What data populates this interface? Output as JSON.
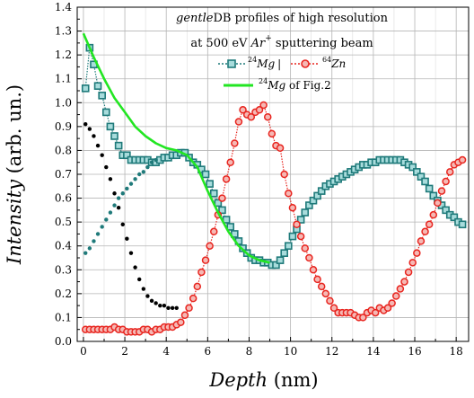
{
  "chart_data": {
    "type": "line",
    "title_lines": [
      {
        "italic": "gentle",
        "rest": "DB profiles of high resolution"
      },
      {
        "prefix": "at 500 eV ",
        "ion_italic": "Ar",
        "ion_sup": "+",
        "suffix": " sputtering beam"
      }
    ],
    "xlabel_italic": "Depth",
    "xlabel_unit": " (nm)",
    "ylabel_italic": "Intensity",
    "ylabel_unit": " (arb. un.)",
    "xlim": [
      -0.3,
      18.6
    ],
    "ylim": [
      0,
      1.4
    ],
    "xticks": [
      "0",
      "2",
      "4",
      "6",
      "8",
      "10",
      "12",
      "14",
      "16",
      "18"
    ],
    "xtick_values": [
      0,
      2,
      4,
      6,
      8,
      10,
      12,
      14,
      16,
      18
    ],
    "yticks": [
      "0.0",
      "0.1",
      "0.2",
      "0.3",
      "0.4",
      "0.5",
      "0.6",
      "0.7",
      "0.8",
      "0.9",
      "1.0",
      "1.1",
      "1.2",
      "1.3",
      "1.4"
    ],
    "ytick_values": [
      0,
      0.1,
      0.2,
      0.3,
      0.4,
      0.5,
      0.6,
      0.7,
      0.8,
      0.9,
      1.0,
      1.1,
      1.2,
      1.3,
      1.4
    ],
    "grid": true,
    "legend": {
      "position": "top-right",
      "mg_sup": "24",
      "mg_label": "Mg",
      "separator": "|",
      "zn_sup": "64",
      "zn_label": "Zn",
      "fig2_sup": "24",
      "fig2_label": "Mg",
      "fig2_suffix": " of Fig.2"
    },
    "series": [
      {
        "key": "mg",
        "color": "#1f7a7a",
        "marker": "square",
        "x": [
          0.1,
          0.3,
          0.5,
          0.7,
          0.9,
          1.1,
          1.3,
          1.5,
          1.7,
          1.9,
          2.1,
          2.3,
          2.5,
          2.7,
          2.9,
          3.1,
          3.3,
          3.5,
          3.7,
          3.9,
          4.1,
          4.3,
          4.5,
          4.7,
          4.9,
          5.1,
          5.3,
          5.5,
          5.7,
          5.9,
          6.1,
          6.3,
          6.5,
          6.7,
          6.9,
          7.1,
          7.3,
          7.5,
          7.7,
          7.9,
          8.1,
          8.3,
          8.5,
          8.7,
          8.9,
          9.1,
          9.3,
          9.5,
          9.7,
          9.9,
          10.1,
          10.3,
          10.5,
          10.7,
          10.9,
          11.1,
          11.3,
          11.5,
          11.7,
          11.9,
          12.1,
          12.3,
          12.5,
          12.7,
          12.9,
          13.1,
          13.3,
          13.5,
          13.7,
          13.9,
          14.1,
          14.3,
          14.5,
          14.7,
          14.9,
          15.1,
          15.3,
          15.5,
          15.7,
          15.9,
          16.1,
          16.3,
          16.5,
          16.7,
          16.9,
          17.1,
          17.3,
          17.5,
          17.7,
          17.9,
          18.1,
          18.3
        ],
        "y": [
          1.06,
          1.23,
          1.16,
          1.07,
          1.03,
          0.96,
          0.9,
          0.86,
          0.82,
          0.78,
          0.78,
          0.76,
          0.76,
          0.76,
          0.76,
          0.76,
          0.75,
          0.75,
          0.76,
          0.77,
          0.77,
          0.78,
          0.78,
          0.79,
          0.79,
          0.77,
          0.75,
          0.74,
          0.72,
          0.7,
          0.66,
          0.62,
          0.58,
          0.55,
          0.51,
          0.48,
          0.45,
          0.42,
          0.39,
          0.37,
          0.35,
          0.34,
          0.34,
          0.33,
          0.33,
          0.32,
          0.32,
          0.34,
          0.37,
          0.4,
          0.44,
          0.47,
          0.51,
          0.54,
          0.57,
          0.59,
          0.61,
          0.63,
          0.65,
          0.66,
          0.67,
          0.68,
          0.69,
          0.7,
          0.71,
          0.72,
          0.73,
          0.74,
          0.74,
          0.75,
          0.75,
          0.76,
          0.76,
          0.76,
          0.76,
          0.76,
          0.76,
          0.75,
          0.74,
          0.73,
          0.71,
          0.69,
          0.67,
          0.64,
          0.61,
          0.59,
          0.57,
          0.55,
          0.53,
          0.52,
          0.5,
          0.49
        ]
      },
      {
        "key": "zn",
        "color": "#e8251f",
        "marker": "circle",
        "x": [
          0.1,
          0.3,
          0.5,
          0.7,
          0.9,
          1.1,
          1.3,
          1.5,
          1.7,
          1.9,
          2.1,
          2.3,
          2.5,
          2.7,
          2.9,
          3.1,
          3.3,
          3.5,
          3.7,
          3.9,
          4.1,
          4.3,
          4.5,
          4.7,
          4.9,
          5.1,
          5.3,
          5.5,
          5.7,
          5.9,
          6.1,
          6.3,
          6.5,
          6.7,
          6.9,
          7.1,
          7.3,
          7.5,
          7.7,
          7.9,
          8.1,
          8.3,
          8.5,
          8.7,
          8.9,
          9.1,
          9.3,
          9.5,
          9.7,
          9.9,
          10.1,
          10.3,
          10.5,
          10.7,
          10.9,
          11.1,
          11.3,
          11.5,
          11.7,
          11.9,
          12.1,
          12.3,
          12.5,
          12.7,
          12.9,
          13.1,
          13.3,
          13.5,
          13.7,
          13.9,
          14.1,
          14.3,
          14.5,
          14.7,
          14.9,
          15.1,
          15.3,
          15.5,
          15.7,
          15.9,
          16.1,
          16.3,
          16.5,
          16.7,
          16.9,
          17.1,
          17.3,
          17.5,
          17.7,
          17.9,
          18.1,
          18.3
        ],
        "y": [
          0.05,
          0.05,
          0.05,
          0.05,
          0.05,
          0.05,
          0.05,
          0.06,
          0.05,
          0.05,
          0.04,
          0.04,
          0.04,
          0.04,
          0.05,
          0.05,
          0.04,
          0.05,
          0.05,
          0.06,
          0.06,
          0.06,
          0.07,
          0.08,
          0.11,
          0.14,
          0.18,
          0.23,
          0.29,
          0.34,
          0.4,
          0.46,
          0.53,
          0.6,
          0.68,
          0.75,
          0.83,
          0.92,
          0.97,
          0.95,
          0.94,
          0.96,
          0.97,
          0.99,
          0.94,
          0.87,
          0.82,
          0.81,
          0.7,
          0.62,
          0.56,
          0.49,
          0.44,
          0.39,
          0.35,
          0.3,
          0.26,
          0.23,
          0.2,
          0.17,
          0.14,
          0.12,
          0.12,
          0.12,
          0.12,
          0.11,
          0.1,
          0.1,
          0.12,
          0.13,
          0.12,
          0.14,
          0.13,
          0.14,
          0.16,
          0.19,
          0.22,
          0.25,
          0.29,
          0.33,
          0.37,
          0.42,
          0.46,
          0.49,
          0.53,
          0.58,
          0.63,
          0.67,
          0.71,
          0.74,
          0.75,
          0.76
        ]
      },
      {
        "key": "black",
        "color": "#000000",
        "marker": "dot",
        "x": [
          0.1,
          0.3,
          0.5,
          0.7,
          0.9,
          1.1,
          1.3,
          1.5,
          1.7,
          1.9,
          2.1,
          2.3,
          2.5,
          2.7,
          2.9,
          3.1,
          3.3,
          3.5,
          3.7,
          3.9,
          4.1,
          4.3,
          4.5
        ],
        "y": [
          0.91,
          0.89,
          0.86,
          0.82,
          0.78,
          0.73,
          0.68,
          0.62,
          0.56,
          0.49,
          0.43,
          0.37,
          0.31,
          0.26,
          0.22,
          0.19,
          0.17,
          0.16,
          0.15,
          0.15,
          0.14,
          0.14,
          0.14
        ]
      },
      {
        "key": "tealdot",
        "color": "#1f7a7a",
        "marker": "dot",
        "x": [
          0.1,
          0.3,
          0.5,
          0.7,
          0.9,
          1.1,
          1.3,
          1.5,
          1.7,
          1.9,
          2.1,
          2.3,
          2.5,
          2.7,
          2.9,
          3.1,
          3.3,
          3.5
        ],
        "y": [
          0.37,
          0.39,
          0.42,
          0.45,
          0.48,
          0.51,
          0.54,
          0.57,
          0.6,
          0.62,
          0.64,
          0.66,
          0.68,
          0.7,
          0.71,
          0.73,
          0.75,
          0.76
        ]
      },
      {
        "key": "fig2",
        "color": "#22e622",
        "marker": "none",
        "x": [
          0,
          0.5,
          1,
          1.5,
          2,
          2.5,
          3,
          3.5,
          4,
          4.5,
          5,
          5.5,
          6,
          6.5,
          7,
          7.5,
          8,
          8.5,
          9
        ],
        "y": [
          1.29,
          1.19,
          1.1,
          1.02,
          0.96,
          0.9,
          0.86,
          0.83,
          0.81,
          0.8,
          0.78,
          0.73,
          0.63,
          0.54,
          0.46,
          0.4,
          0.36,
          0.34,
          0.33
        ]
      }
    ]
  }
}
